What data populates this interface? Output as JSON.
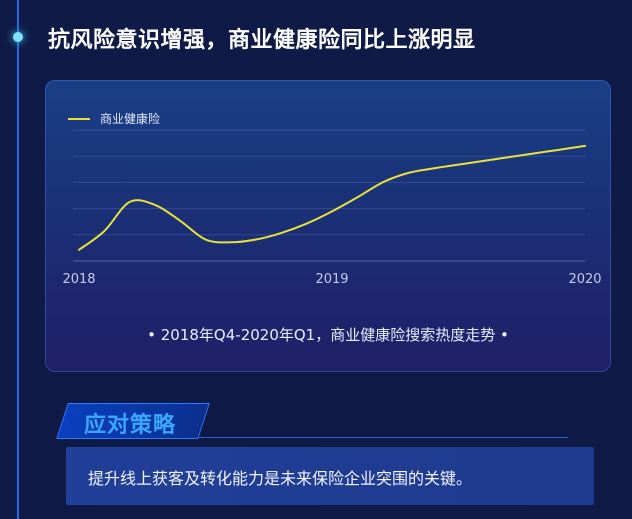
{
  "header": {
    "title": "抗风险意识增强，商业健康险同比上涨明显"
  },
  "chart_data": {
    "type": "line",
    "title": "",
    "caption": "• 2018年Q4-2020年Q1，商业健康险搜索热度走势 •",
    "xlabel": "",
    "ylabel": "",
    "x_ticks": [
      "2018",
      "2019",
      "2020"
    ],
    "x": [
      2018.0,
      2018.1,
      2018.2,
      2018.3,
      2018.4,
      2018.5,
      2018.6,
      2018.7,
      2018.8,
      2018.9,
      2019.0,
      2019.1,
      2019.2,
      2019.3,
      2019.4,
      2019.5,
      2019.6,
      2019.7,
      2019.8,
      2019.9,
      2020.0
    ],
    "series": [
      {
        "name": "商业健康险",
        "color": "#e8e23a",
        "values": [
          12,
          32,
          63,
          60,
          43,
          23,
          20,
          23,
          30,
          40,
          53,
          68,
          84,
          94,
          99,
          103,
          107,
          111,
          115,
          119,
          123
        ]
      }
    ],
    "ylim": [
      0,
      140
    ],
    "grid": true,
    "legend": "top-left"
  },
  "section": {
    "heading": "应对策略",
    "conclusion": "提升线上获客及转化能力是未来保险企业突围的关键。"
  }
}
